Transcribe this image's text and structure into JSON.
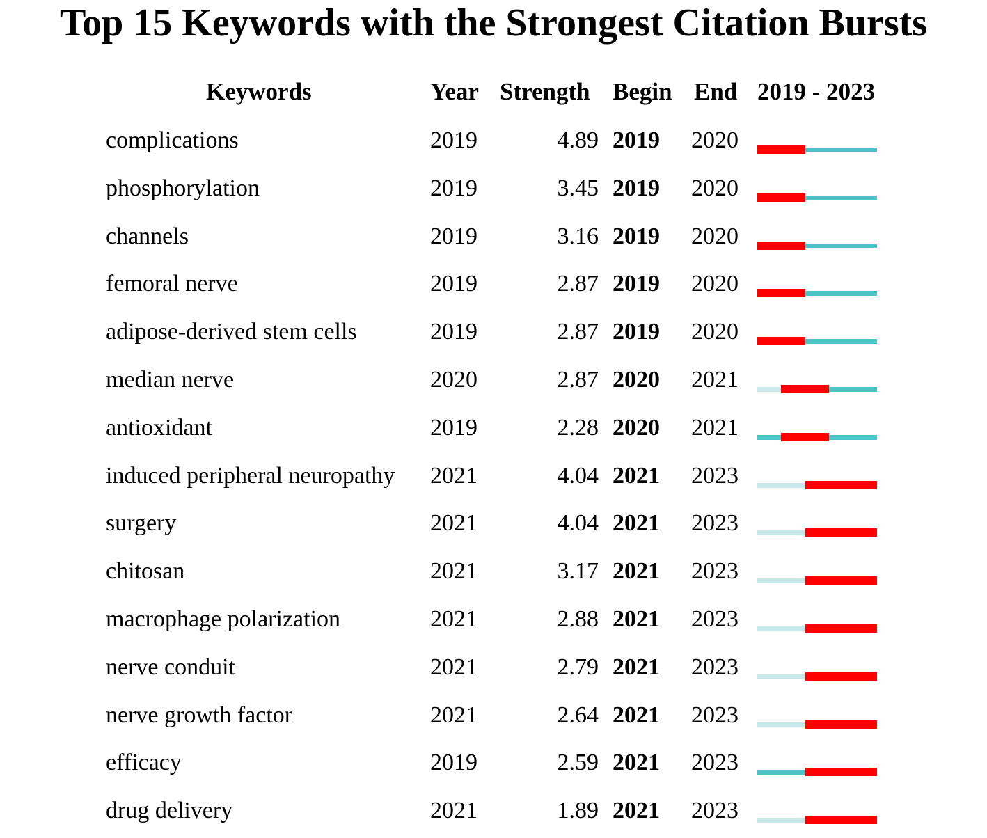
{
  "colors": {
    "burst": "#ff0000",
    "active": "#4cc3c5",
    "inactive": "#c9e8ea"
  },
  "chart_data": {
    "type": "table",
    "title": "Top 15 Keywords with the Strongest Citation Bursts",
    "columns": [
      "Keywords",
      "Year",
      "Strength",
      "Begin",
      "End",
      "2019 - 2023"
    ],
    "range": [
      2019,
      2023
    ],
    "rows": [
      {
        "keyword": "complications",
        "year": "2019",
        "strength": "4.89",
        "begin": "2019",
        "end": "2020"
      },
      {
        "keyword": "phosphorylation",
        "year": "2019",
        "strength": "3.45",
        "begin": "2019",
        "end": "2020"
      },
      {
        "keyword": "channels",
        "year": "2019",
        "strength": "3.16",
        "begin": "2019",
        "end": "2020"
      },
      {
        "keyword": "femoral nerve",
        "year": "2019",
        "strength": "2.87",
        "begin": "2019",
        "end": "2020"
      },
      {
        "keyword": "adipose-derived stem cells",
        "year": "2019",
        "strength": "2.87",
        "begin": "2019",
        "end": "2020"
      },
      {
        "keyword": "median nerve",
        "year": "2020",
        "strength": "2.87",
        "begin": "2020",
        "end": "2021"
      },
      {
        "keyword": "antioxidant",
        "year": "2019",
        "strength": "2.28",
        "begin": "2020",
        "end": "2021"
      },
      {
        "keyword": "induced peripheral neuropathy",
        "year": "2021",
        "strength": "4.04",
        "begin": "2021",
        "end": "2023"
      },
      {
        "keyword": "surgery",
        "year": "2021",
        "strength": "4.04",
        "begin": "2021",
        "end": "2023"
      },
      {
        "keyword": "chitosan",
        "year": "2021",
        "strength": "3.17",
        "begin": "2021",
        "end": "2023"
      },
      {
        "keyword": "macrophage polarization",
        "year": "2021",
        "strength": "2.88",
        "begin": "2021",
        "end": "2023"
      },
      {
        "keyword": "nerve conduit",
        "year": "2021",
        "strength": "2.79",
        "begin": "2021",
        "end": "2023"
      },
      {
        "keyword": "nerve growth factor",
        "year": "2021",
        "strength": "2.64",
        "begin": "2021",
        "end": "2023"
      },
      {
        "keyword": "efficacy",
        "year": "2019",
        "strength": "2.59",
        "begin": "2021",
        "end": "2023"
      },
      {
        "keyword": "drug delivery",
        "year": "2021",
        "strength": "1.89",
        "begin": "2021",
        "end": "2023"
      }
    ]
  }
}
